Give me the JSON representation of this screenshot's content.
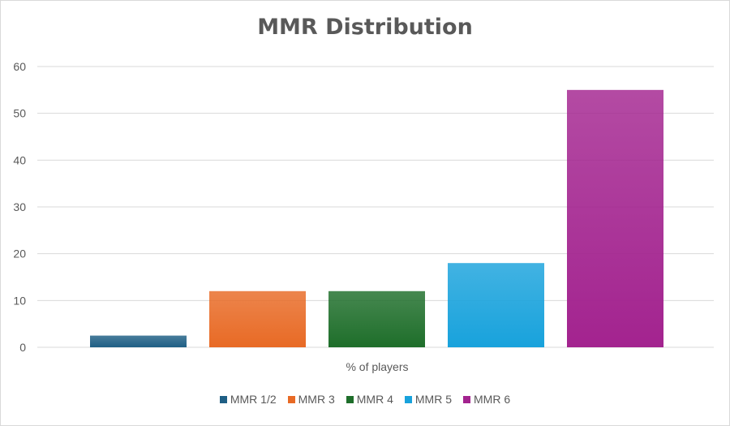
{
  "chart_data": {
    "type": "bar",
    "title": "MMR Distribution",
    "categories": [
      "% of players"
    ],
    "xlabel": "% of players",
    "ylabel": "",
    "ylim": [
      0,
      60
    ],
    "yticks": [
      0,
      10,
      20,
      30,
      40,
      50,
      60
    ],
    "grid": true,
    "legend_position": "bottom",
    "series": [
      {
        "name": "MMR 1/2",
        "values": [
          2.5
        ],
        "color": "#1f5f85"
      },
      {
        "name": "MMR 3",
        "values": [
          12
        ],
        "color": "#e86a25"
      },
      {
        "name": "MMR 4",
        "values": [
          12
        ],
        "color": "#1e6e2a"
      },
      {
        "name": "MMR 5",
        "values": [
          18
        ],
        "color": "#18a2dc"
      },
      {
        "name": "MMR 6",
        "values": [
          55
        ],
        "color": "#a3238f"
      }
    ]
  }
}
